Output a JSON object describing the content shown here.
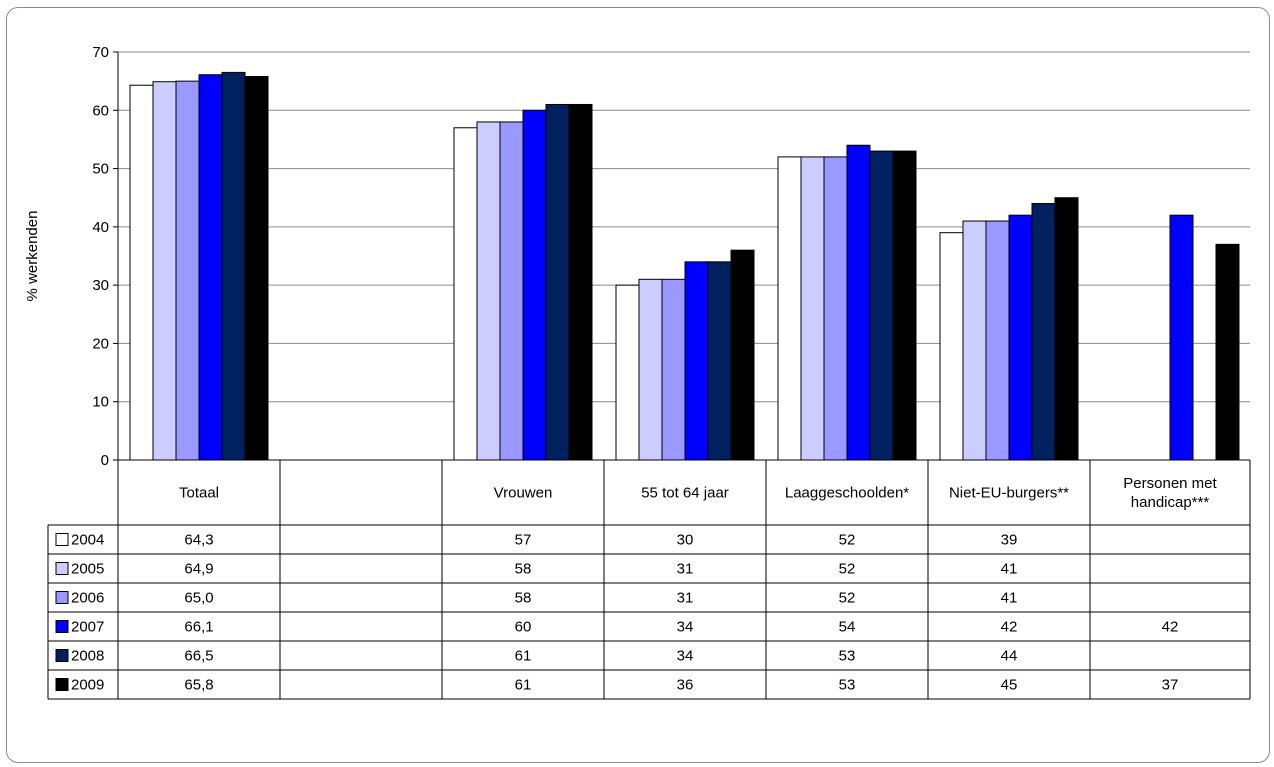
{
  "chart_data": {
    "type": "bar",
    "title": "",
    "xlabel": "",
    "ylabel": "% werkenden",
    "ylim": [
      0,
      70
    ],
    "y_ticks": [
      0,
      10,
      20,
      30,
      40,
      50,
      60,
      70
    ],
    "grid": true,
    "legend": "data table rows (left)",
    "categories": [
      "Totaal",
      "",
      "Vrouwen",
      "55 tot 64 jaar",
      "Laaggeschoolden*",
      "Niet-EU-burgers**",
      "Personen met handicap***"
    ],
    "series": [
      {
        "name": "2004",
        "color": "#ffffff",
        "values": [
          64.3,
          null,
          57,
          30,
          52,
          39,
          null
        ],
        "labels": [
          "64,3",
          "",
          "57",
          "30",
          "52",
          "39",
          ""
        ]
      },
      {
        "name": "2005",
        "color": "#ccccff",
        "values": [
          64.9,
          null,
          58,
          31,
          52,
          41,
          null
        ],
        "labels": [
          "64,9",
          "",
          "58",
          "31",
          "52",
          "41",
          ""
        ]
      },
      {
        "name": "2006",
        "color": "#9999ff",
        "values": [
          65.0,
          null,
          58,
          31,
          52,
          41,
          null
        ],
        "labels": [
          "65,0",
          "",
          "58",
          "31",
          "52",
          "41",
          ""
        ]
      },
      {
        "name": "2007",
        "color": "#0000ff",
        "values": [
          66.1,
          null,
          60,
          34,
          54,
          42,
          42
        ],
        "labels": [
          "66,1",
          "",
          "60",
          "34",
          "54",
          "42",
          "42"
        ]
      },
      {
        "name": "2008",
        "color": "#002060",
        "values": [
          66.5,
          null,
          61,
          34,
          53,
          44,
          null
        ],
        "labels": [
          "66,5",
          "",
          "61",
          "34",
          "53",
          "44",
          ""
        ]
      },
      {
        "name": "2009",
        "color": "#000000",
        "values": [
          65.8,
          null,
          61,
          36,
          53,
          45,
          37
        ],
        "labels": [
          "65,8",
          "",
          "61",
          "36",
          "53",
          "45",
          "37"
        ]
      }
    ]
  }
}
